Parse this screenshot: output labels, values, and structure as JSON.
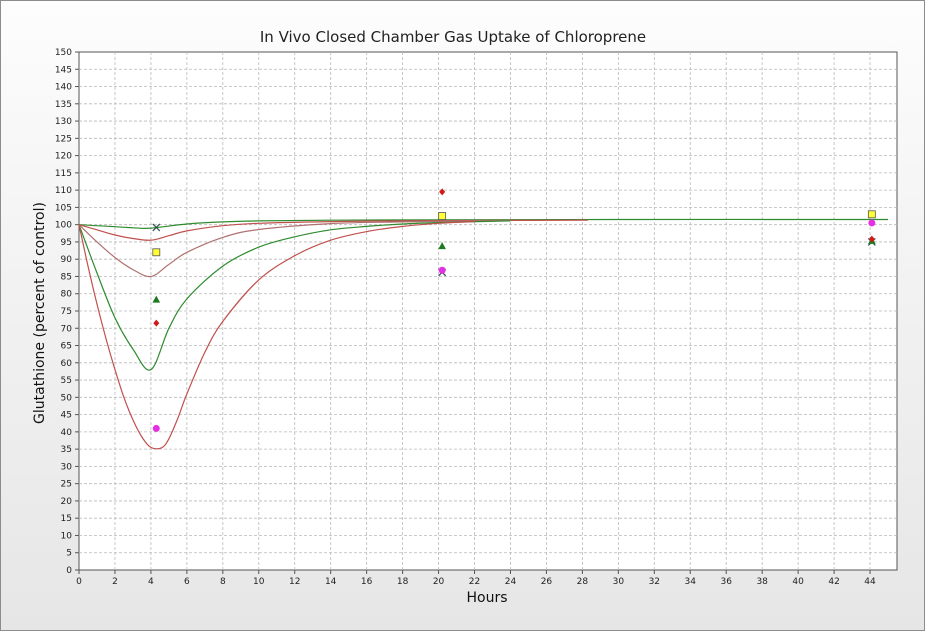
{
  "chart_data": {
    "type": "line",
    "title": "In Vivo Closed Chamber Gas Uptake of Chloroprene",
    "xlabel": "Hours",
    "ylabel": "Glutathione (percent of control)",
    "xlim": [
      0,
      45.5
    ],
    "ylim": [
      0,
      150
    ],
    "x_ticks": [
      0,
      2,
      4,
      6,
      8,
      10,
      12,
      14,
      16,
      18,
      20,
      22,
      24,
      26,
      28,
      30,
      32,
      34,
      36,
      38,
      40,
      42,
      44
    ],
    "y_ticks": [
      0,
      5,
      10,
      15,
      20,
      25,
      30,
      35,
      40,
      45,
      50,
      55,
      60,
      65,
      70,
      75,
      80,
      85,
      90,
      95,
      100,
      105,
      110,
      115,
      120,
      125,
      130,
      135,
      140,
      145,
      150
    ],
    "grid": true,
    "legend": "none",
    "lines": [
      {
        "color": "#2e8b2e",
        "points": [
          [
            0,
            100
          ],
          [
            1,
            99.7
          ],
          [
            2,
            99.4
          ],
          [
            3,
            99.1
          ],
          [
            4,
            99
          ],
          [
            6,
            100.2
          ],
          [
            8,
            100.8
          ],
          [
            10,
            101.1
          ],
          [
            14,
            101.3
          ],
          [
            20,
            101.4
          ],
          [
            30,
            101.5
          ],
          [
            45,
            101.5
          ]
        ]
      },
      {
        "color": "#c0504d",
        "points": [
          [
            0,
            100
          ],
          [
            1,
            98.5
          ],
          [
            2,
            97
          ],
          [
            3,
            96
          ],
          [
            4,
            95.5
          ],
          [
            5,
            96.8
          ],
          [
            6,
            98.2
          ],
          [
            8,
            99.7
          ],
          [
            10,
            100.4
          ],
          [
            14,
            100.9
          ],
          [
            18,
            101.1
          ],
          [
            22,
            101.2
          ],
          [
            28.3,
            101.3
          ]
        ]
      },
      {
        "color": "#b07070",
        "points": [
          [
            0,
            100
          ],
          [
            1,
            95
          ],
          [
            2,
            90.5
          ],
          [
            3,
            87
          ],
          [
            4,
            85
          ],
          [
            5,
            88.5
          ],
          [
            6,
            92
          ],
          [
            8,
            96.3
          ],
          [
            10,
            98.6
          ],
          [
            14,
            100.3
          ],
          [
            18,
            100.8
          ],
          [
            24,
            101.2
          ]
        ]
      },
      {
        "color": "#2e8b2e",
        "points": [
          [
            0,
            100
          ],
          [
            1,
            86
          ],
          [
            2,
            73
          ],
          [
            3,
            64
          ],
          [
            4,
            58
          ],
          [
            5,
            70
          ],
          [
            6,
            78.5
          ],
          [
            8,
            88
          ],
          [
            10,
            93.5
          ],
          [
            12,
            96.5
          ],
          [
            14,
            98.5
          ],
          [
            16,
            99.5
          ],
          [
            18,
            100.2
          ],
          [
            20,
            100.6
          ],
          [
            24,
            101.1
          ]
        ]
      },
      {
        "color": "#c0504d",
        "points": [
          [
            0,
            100
          ],
          [
            0.5,
            88
          ],
          [
            1,
            77
          ],
          [
            1.5,
            67
          ],
          [
            2,
            58
          ],
          [
            2.5,
            50
          ],
          [
            3,
            43.5
          ],
          [
            3.5,
            38.5
          ],
          [
            4,
            35.5
          ],
          [
            4.6,
            35.4
          ],
          [
            5,
            38
          ],
          [
            5.5,
            44
          ],
          [
            6,
            51
          ],
          [
            7,
            63
          ],
          [
            8,
            72
          ],
          [
            10,
            84
          ],
          [
            12,
            91
          ],
          [
            14,
            95.5
          ],
          [
            16,
            98
          ],
          [
            18,
            99.5
          ],
          [
            20,
            100.4
          ],
          [
            22,
            100.9
          ]
        ]
      }
    ],
    "points": [
      {
        "series": "x-mark",
        "color": "#2f4f4f",
        "marker": "x",
        "data": [
          [
            4.3,
            99.2
          ],
          [
            20.2,
            86.2
          ],
          [
            44.1,
            95
          ]
        ]
      },
      {
        "series": "square",
        "color": "#ffff33",
        "marker": "square",
        "data": [
          [
            4.3,
            92
          ],
          [
            20.2,
            102.5
          ],
          [
            44.1,
            103
          ]
        ]
      },
      {
        "series": "triangle",
        "color": "#1e7a1e",
        "marker": "triangle",
        "data": [
          [
            4.3,
            78.3
          ],
          [
            20.2,
            93.8
          ],
          [
            44.1,
            95.3
          ]
        ]
      },
      {
        "series": "diamond",
        "color": "#d11a1a",
        "marker": "diamond",
        "data": [
          [
            4.3,
            71.5
          ],
          [
            20.2,
            109.5
          ],
          [
            44.1,
            95.8
          ]
        ]
      },
      {
        "series": "circle",
        "color": "#e62ee6",
        "marker": "circle",
        "data": [
          [
            4.3,
            41
          ],
          [
            20.2,
            86.8
          ],
          [
            44.1,
            100.5
          ]
        ]
      }
    ]
  }
}
